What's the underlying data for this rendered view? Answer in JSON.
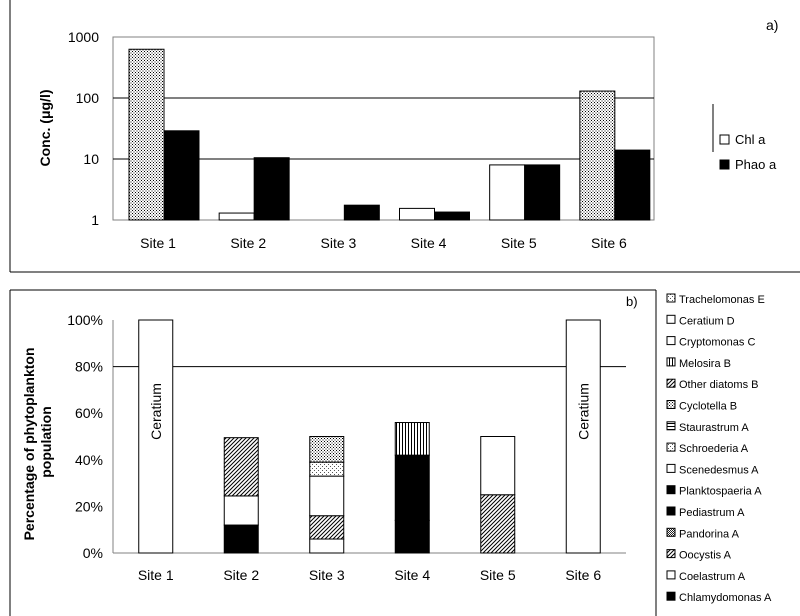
{
  "chart_data": [
    {
      "type": "bar",
      "panel_label": "a)",
      "ylabel": "Conc. (μg/l)",
      "y_scale": "log",
      "ylim": [
        1,
        1000
      ],
      "yticks": [
        "1",
        "10",
        "100",
        "1000"
      ],
      "categories": [
        "Site 1",
        "Site 2",
        "Site 3",
        "Site 4",
        "Site 5",
        "Site 6"
      ],
      "legend_position": "right",
      "series": [
        {
          "name": "Chl a",
          "values": [
            630,
            1.3,
            null,
            1.55,
            8.0,
            130
          ]
        },
        {
          "name": "Phao a",
          "values": [
            29,
            10.5,
            1.75,
            1.35,
            8.0,
            14
          ]
        }
      ]
    },
    {
      "type": "bar",
      "stacked": true,
      "panel_label": "b)",
      "ylabel": "Percentage of phytoplankton population",
      "ylim": [
        0,
        100
      ],
      "yticks": [
        "0%",
        "20%",
        "40%",
        "60%",
        "80%",
        "100%"
      ],
      "categories": [
        "Site 1",
        "Site 2",
        "Site 3",
        "Site 4",
        "Site 5",
        "Site 6"
      ],
      "legend_position": "right",
      "bar_labels": {
        "Site 1": "Ceratium",
        "Site 6": "Ceratium"
      },
      "series": [
        {
          "name": "Chlamydomonas A",
          "values": [
            0,
            12,
            0,
            14,
            0,
            0
          ]
        },
        {
          "name": "Coelastrum A",
          "values": [
            0,
            12.5,
            6,
            0,
            0,
            0
          ]
        },
        {
          "name": "Oocystis A",
          "values": [
            0,
            0,
            10,
            0,
            25,
            0
          ]
        },
        {
          "name": "Pandorina A",
          "values": [
            0,
            0,
            0,
            0,
            0,
            0
          ]
        },
        {
          "name": "Pediastrum A",
          "values": [
            0,
            0,
            0,
            0,
            0,
            0
          ]
        },
        {
          "name": "Planktospaeria A",
          "values": [
            0,
            0,
            0,
            28,
            0,
            0
          ]
        },
        {
          "name": "Scenedesmus A",
          "values": [
            0,
            0,
            17,
            0,
            25,
            0
          ]
        },
        {
          "name": "Schroederia A",
          "values": [
            0,
            0,
            6,
            0,
            0,
            0
          ]
        },
        {
          "name": "Staurastrum A",
          "values": [
            0,
            0,
            0,
            0,
            0,
            0
          ]
        },
        {
          "name": "Cyclotella B",
          "values": [
            0,
            0,
            11,
            0,
            0,
            0
          ]
        },
        {
          "name": "Other diatoms B",
          "values": [
            0,
            25,
            0,
            0,
            0,
            0
          ]
        },
        {
          "name": "Melosira B",
          "values": [
            0,
            0,
            0,
            14,
            0,
            0
          ]
        },
        {
          "name": "Cryptomonas C",
          "values": [
            0,
            0,
            0,
            0,
            0,
            0
          ]
        },
        {
          "name": "Ceratium D",
          "values": [
            100,
            0,
            0,
            0,
            0,
            100
          ]
        },
        {
          "name": "Trachelomonas E",
          "values": [
            0,
            0,
            0,
            0,
            0,
            0
          ]
        }
      ]
    }
  ]
}
